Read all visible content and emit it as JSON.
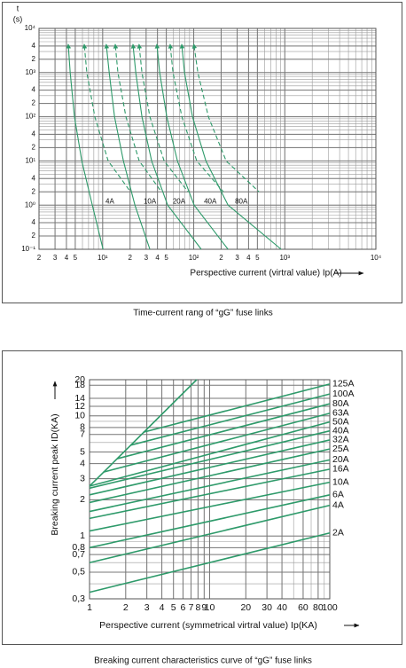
{
  "chart_data": [
    {
      "type": "line",
      "title": "Time-current rang of “gG” fuse links",
      "x_label": "Perspective current (virtral value) Ip(A)",
      "y_label": "t",
      "y_unit": "(s)",
      "xscale": "log",
      "yscale": "log",
      "grid": true,
      "start_arrows": true,
      "xlim": [
        2,
        10000
      ],
      "ylim": [
        0.1,
        10000
      ],
      "xticks": [
        2,
        3,
        4,
        5,
        {
          "value": 10,
          "label": "10¹"
        },
        {
          "value": 20,
          "label": "2"
        },
        {
          "value": 30,
          "label": "3"
        },
        {
          "value": 40,
          "label": "4"
        },
        {
          "value": 50,
          "label": "5"
        },
        {
          "value": 100,
          "label": "10²"
        },
        {
          "value": 200,
          "label": "2"
        },
        {
          "value": 300,
          "label": "3"
        },
        {
          "value": 400,
          "label": "4"
        },
        {
          "value": 500,
          "label": "5"
        },
        {
          "value": 1000,
          "label": "10³"
        },
        {
          "value": 10000,
          "label": "10⁴"
        }
      ],
      "yticks": [
        {
          "value": 10000,
          "label": "10⁴"
        },
        {
          "value": 4000,
          "label": "4"
        },
        {
          "value": 2000,
          "label": "2"
        },
        {
          "value": 1000,
          "label": "10³"
        },
        {
          "value": 400,
          "label": "4"
        },
        {
          "value": 200,
          "label": "2"
        },
        {
          "value": 100,
          "label": "10²"
        },
        {
          "value": 40,
          "label": "4"
        },
        {
          "value": 20,
          "label": "2"
        },
        {
          "value": 10,
          "label": "10¹"
        },
        4,
        2,
        {
          "value": 1,
          "label": "10⁰"
        },
        {
          "value": 0.4,
          "label": "4"
        },
        {
          "value": 0.2,
          "label": "2"
        },
        {
          "value": 0.1,
          "label": "10⁻¹"
        }
      ],
      "series": [
        {
          "color": "#2e9a6a",
          "dash": false,
          "x": [
            4.2,
            4.4,
            4.9,
            5.9,
            7.7,
            10.1
          ],
          "values": [
            4000,
            1000,
            100,
            10,
            1,
            0.1
          ]
        },
        {
          "color": "#2e9a6a",
          "dash": true,
          "x": [
            6.3,
            6.7,
            8.2,
            11.5,
            20.2
          ],
          "values": [
            4000,
            1000,
            100,
            10,
            2
          ]
        },
        {
          "color": "#2e9a6a",
          "dash": false,
          "x": [
            11.0,
            11.8,
            13.5,
            16.9,
            22.6,
            33.0
          ],
          "values": [
            4000,
            1000,
            100,
            10,
            1,
            0.1
          ]
        },
        {
          "color": "#2e9a6a",
          "dash": true,
          "x": [
            13.8,
            14.7,
            18.0,
            25.2,
            44.2
          ],
          "values": [
            4000,
            1000,
            100,
            10,
            2
          ]
        },
        {
          "color": "#2e9a6a",
          "dash": false,
          "x": [
            21.6,
            23.1,
            27.0,
            34.5,
            51.7,
            121
          ],
          "values": [
            4000,
            1000,
            100,
            10,
            1,
            0.1
          ]
        },
        {
          "color": "#2e9a6a",
          "dash": true,
          "x": [
            25.2,
            27.0,
            33.0,
            47.3,
            86.6
          ],
          "values": [
            4000,
            1000,
            100,
            10,
            2
          ]
        },
        {
          "color": "#2e9a6a",
          "dash": false,
          "x": [
            39.5,
            42.3,
            50.6,
            66.2,
            101,
            238
          ],
          "values": [
            4000,
            1000,
            100,
            10,
            1,
            0.1
          ]
        },
        {
          "color": "#2e9a6a",
          "dash": true,
          "x": [
            55.3,
            59.2,
            74.1,
            108,
            212
          ],
          "values": [
            4000,
            1000,
            100,
            10,
            2
          ]
        },
        {
          "color": "#2e9a6a",
          "dash": false,
          "x": [
            74.1,
            79.2,
            96.9,
            136,
            238,
            912
          ],
          "values": [
            4000,
            1000,
            100,
            10,
            1,
            0.1
          ]
        },
        {
          "color": "#2e9a6a",
          "dash": true,
          "x": [
            101,
            111,
            145,
            227,
            521
          ],
          "values": [
            4000,
            1000,
            100,
            10,
            2
          ]
        }
      ],
      "annotations": [
        {
          "text": "4A",
          "x": 12,
          "y": 1.2
        },
        {
          "text": "10A",
          "x": 33,
          "y": 1.2
        },
        {
          "text": "20A",
          "x": 69,
          "y": 1.2
        },
        {
          "text": "40A",
          "x": 152,
          "y": 1.2
        },
        {
          "text": "80A",
          "x": 333,
          "y": 1.2
        }
      ]
    },
    {
      "type": "line",
      "title": "Breaking current characteristics curve of “gG” fuse links",
      "x_label": "Perspective current (symmetrical virtral value) Ip(KA)",
      "y_label": "Breaking current peak ID(KA)",
      "xscale": "log",
      "yscale": "log",
      "grid": true,
      "start_arrows": false,
      "xlim": [
        1,
        100
      ],
      "ylim": [
        0.3,
        20
      ],
      "xticks": [
        1,
        2,
        3,
        4,
        5,
        6,
        7,
        8,
        9,
        10,
        20,
        30,
        40,
        60,
        80,
        100
      ],
      "yticks": [
        20,
        18,
        14,
        12,
        10,
        8,
        7,
        5,
        4,
        3,
        2,
        1,
        {
          "value": 0.8,
          "label": "0,8"
        },
        {
          "value": 0.7,
          "label": "0,7"
        },
        {
          "value": 0.5,
          "label": "0,5"
        },
        {
          "value": 0.3,
          "label": "0,3"
        }
      ],
      "series": [
        {
          "color": "#2e9a6a",
          "x": [
            1,
            7.8
          ],
          "values": [
            2.6,
            20
          ]
        },
        {
          "name": "125A",
          "color": "#2e9a6a",
          "x": [
            2.8,
            100
          ],
          "values": [
            7.3,
            18.4
          ]
        },
        {
          "name": "100A",
          "color": "#2e9a6a",
          "x": [
            2.2,
            100
          ],
          "values": [
            5.7,
            15.2
          ]
        },
        {
          "name": "80A",
          "color": "#2e9a6a",
          "x": [
            1.7,
            100
          ],
          "values": [
            4.4,
            12.6
          ]
        },
        {
          "name": "63A",
          "color": "#2e9a6a",
          "x": [
            1.3,
            100
          ],
          "values": [
            3.4,
            10.5
          ]
        },
        {
          "name": "50A",
          "color": "#2e9a6a",
          "x": [
            1,
            100
          ],
          "values": [
            2.6,
            8.9
          ]
        },
        {
          "name": "40A",
          "color": "#2e9a6a",
          "x": [
            1,
            100
          ],
          "values": [
            2.5,
            7.5
          ]
        },
        {
          "name": "32A",
          "color": "#2e9a6a",
          "x": [
            1,
            100
          ],
          "values": [
            2.2,
            6.3
          ]
        },
        {
          "name": "25A",
          "color": "#2e9a6a",
          "x": [
            1,
            100
          ],
          "values": [
            1.9,
            5.3
          ]
        },
        {
          "name": "20A",
          "color": "#2e9a6a",
          "x": [
            1,
            100
          ],
          "values": [
            1.6,
            4.3
          ]
        },
        {
          "name": "16A",
          "color": "#2e9a6a",
          "x": [
            1,
            100
          ],
          "values": [
            1.4,
            3.6
          ]
        },
        {
          "name": "10A",
          "color": "#2e9a6a",
          "x": [
            1,
            100
          ],
          "values": [
            1.1,
            2.8
          ]
        },
        {
          "name": "6A",
          "color": "#2e9a6a",
          "x": [
            1,
            100
          ],
          "values": [
            0.8,
            2.2
          ]
        },
        {
          "name": "4A",
          "color": "#2e9a6a",
          "x": [
            1,
            100
          ],
          "values": [
            0.6,
            1.8
          ]
        },
        {
          "name": "2A",
          "color": "#2e9a6a",
          "x": [
            1,
            100
          ],
          "values": [
            0.34,
            1.06
          ]
        }
      ]
    }
  ]
}
